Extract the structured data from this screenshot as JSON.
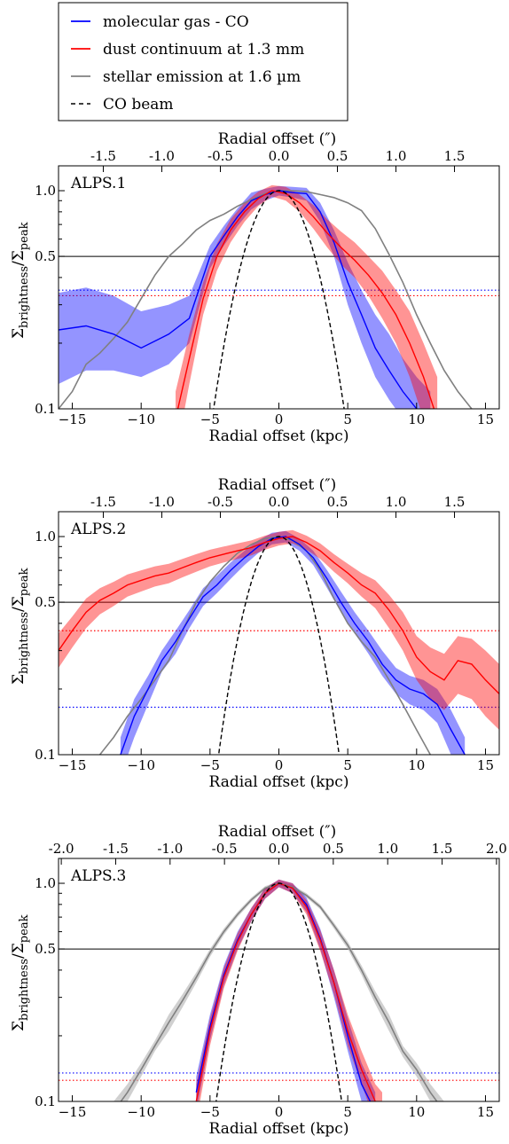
{
  "legend": {
    "items": [
      {
        "label": "molecular gas - CO",
        "color": "#0000ff",
        "style": "solid"
      },
      {
        "label": "dust continuum at 1.3 mm",
        "color": "#ff0000",
        "style": "solid"
      },
      {
        "label": "stellar emission at 1.6 µm",
        "color": "#808080",
        "style": "solid"
      },
      {
        "label": "CO beam",
        "color": "#000000",
        "style": "dashed"
      }
    ]
  },
  "chart_data": [
    {
      "type": "line",
      "panel_label": "ALPS.1",
      "xlabel": "Radial offset (kpc)",
      "x2label": "Radial offset (″)",
      "ylabel_main": "Σ",
      "ylabel_sub1": "brightness",
      "ylabel_sub2": "peak",
      "xlim": [
        -16,
        16
      ],
      "ylim": [
        0.1,
        1.3
      ],
      "yscale": "log",
      "xticks": [
        -15,
        -10,
        -5,
        0,
        5,
        10,
        15
      ],
      "xticklabels": [
        "−15",
        "−10",
        "−5",
        "0",
        "5",
        "10",
        "15"
      ],
      "x2ticks": [
        -1.5,
        -1.0,
        -0.5,
        0.0,
        0.5,
        1.0,
        1.5
      ],
      "x2ticklabels": [
        "-1.5",
        "-1.0",
        "-0.5",
        "0.0",
        "0.5",
        "1.0",
        "1.5"
      ],
      "kpc_per_arcsec": 8.5,
      "yticks": [
        0.1,
        0.5,
        1.0
      ],
      "yticklabels": [
        "0.1",
        "0.5",
        "1.0"
      ],
      "hline_black": 0.5,
      "hline_blue": 0.35,
      "hline_red": 0.33,
      "series": [
        {
          "name": "molecular gas - CO",
          "color": "#0000ff",
          "band": true,
          "x": [
            -16,
            -14,
            -12,
            -10,
            -8,
            -6.5,
            -5,
            -4,
            -3,
            -2,
            -1,
            0,
            1,
            2,
            3,
            4,
            5,
            6,
            7,
            8,
            9,
            10,
            11
          ],
          "y": [
            0.23,
            0.24,
            0.22,
            0.19,
            0.22,
            0.26,
            0.5,
            0.62,
            0.76,
            0.9,
            0.96,
            1.0,
            0.98,
            0.97,
            0.8,
            0.58,
            0.38,
            0.27,
            0.19,
            0.15,
            0.12,
            0.1,
            0.09
          ],
          "lo": [
            0.13,
            0.15,
            0.15,
            0.14,
            0.16,
            0.2,
            0.44,
            0.56,
            0.69,
            0.82,
            0.9,
            0.95,
            0.93,
            0.9,
            0.72,
            0.5,
            0.3,
            0.2,
            0.14,
            0.11,
            0.09,
            0.08,
            0.07
          ],
          "hi": [
            0.34,
            0.36,
            0.33,
            0.28,
            0.3,
            0.33,
            0.56,
            0.69,
            0.83,
            0.98,
            1.02,
            1.05,
            1.04,
            1.03,
            0.88,
            0.66,
            0.47,
            0.35,
            0.27,
            0.22,
            0.17,
            0.14,
            0.12
          ]
        },
        {
          "name": "dust continuum at 1.3 mm",
          "color": "#ff0000",
          "band": true,
          "x": [
            -7.5,
            -6.5,
            -5.5,
            -4.5,
            -3.5,
            -2.5,
            -1.5,
            -0.5,
            0.5,
            1.5,
            2.5,
            3.5,
            4.5,
            5.5,
            6.5,
            7.5,
            8.5,
            9.5,
            10.5,
            11.5
          ],
          "y": [
            0.09,
            0.17,
            0.32,
            0.5,
            0.66,
            0.8,
            0.92,
            1.0,
            0.97,
            0.88,
            0.76,
            0.64,
            0.55,
            0.48,
            0.41,
            0.34,
            0.27,
            0.2,
            0.14,
            0.09
          ],
          "lo": [
            0.06,
            0.13,
            0.27,
            0.43,
            0.58,
            0.72,
            0.85,
            0.94,
            0.9,
            0.8,
            0.67,
            0.55,
            0.46,
            0.4,
            0.33,
            0.26,
            0.2,
            0.14,
            0.09,
            0.06
          ],
          "hi": [
            0.12,
            0.22,
            0.38,
            0.57,
            0.74,
            0.88,
            0.99,
            1.06,
            1.04,
            0.96,
            0.86,
            0.74,
            0.65,
            0.58,
            0.5,
            0.43,
            0.35,
            0.28,
            0.2,
            0.14
          ]
        },
        {
          "name": "stellar emission at 1.6 µm",
          "color": "#808080",
          "band": false,
          "x": [
            -16,
            -15,
            -14,
            -13,
            -12,
            -11,
            -10,
            -9,
            -8,
            -7,
            -6,
            -5,
            -4,
            -3,
            -2,
            -1,
            0,
            1,
            2,
            3,
            4,
            5,
            6,
            7,
            8,
            9,
            10,
            11,
            12,
            13,
            14
          ],
          "y": [
            0.1,
            0.12,
            0.16,
            0.18,
            0.21,
            0.25,
            0.32,
            0.41,
            0.5,
            0.57,
            0.66,
            0.73,
            0.78,
            0.85,
            0.91,
            0.97,
            1.0,
            1.0,
            0.99,
            0.96,
            0.93,
            0.88,
            0.81,
            0.67,
            0.51,
            0.38,
            0.27,
            0.2,
            0.15,
            0.12,
            0.1
          ]
        },
        {
          "name": "CO beam",
          "color": "#000000",
          "band": false,
          "dashed": true,
          "gauss_fwhm": 5.2
        }
      ]
    },
    {
      "type": "line",
      "panel_label": "ALPS.2",
      "xlabel": "Radial offset (kpc)",
      "x2label": "Radial offset (″)",
      "ylabel_main": "Σ",
      "ylabel_sub1": "brightness",
      "ylabel_sub2": "peak",
      "xlim": [
        -16,
        16
      ],
      "ylim": [
        0.1,
        1.3
      ],
      "yscale": "log",
      "xticks": [
        -15,
        -10,
        -5,
        0,
        5,
        10,
        15
      ],
      "xticklabels": [
        "−15",
        "−10",
        "−5",
        "0",
        "5",
        "10",
        "15"
      ],
      "x2ticks": [
        -1.5,
        -1.0,
        -0.5,
        0.0,
        0.5,
        1.0,
        1.5
      ],
      "x2ticklabels": [
        "-1.5",
        "-1.0",
        "-0.5",
        "0.0",
        "0.5",
        "1.0",
        "1.5"
      ],
      "kpc_per_arcsec": 8.5,
      "yticks": [
        0.1,
        0.5,
        1.0
      ],
      "yticklabels": [
        "0.1",
        "0.5",
        "1.0"
      ],
      "hline_black": 0.5,
      "hline_blue": 0.165,
      "hline_red": 0.37,
      "series": [
        {
          "name": "molecular gas - CO",
          "color": "#0000ff",
          "band": true,
          "x": [
            -11.5,
            -10.5,
            -9.5,
            -8.5,
            -7.5,
            -6.5,
            -5.5,
            -4.5,
            -3.5,
            -2.5,
            -1.5,
            -0.5,
            0.5,
            1.5,
            2.5,
            3.5,
            4.5,
            5.5,
            6.5,
            7.5,
            8.5,
            9.5,
            10.5,
            11.5,
            12.5,
            13.5
          ],
          "y": [
            0.1,
            0.15,
            0.2,
            0.27,
            0.33,
            0.42,
            0.53,
            0.6,
            0.7,
            0.8,
            0.9,
            0.98,
            1.0,
            0.92,
            0.8,
            0.64,
            0.5,
            0.4,
            0.33,
            0.26,
            0.22,
            0.2,
            0.19,
            0.17,
            0.13,
            0.1
          ],
          "lo": [
            0.08,
            0.12,
            0.17,
            0.24,
            0.29,
            0.38,
            0.48,
            0.55,
            0.64,
            0.74,
            0.84,
            0.92,
            0.94,
            0.86,
            0.74,
            0.58,
            0.45,
            0.36,
            0.29,
            0.23,
            0.19,
            0.17,
            0.16,
            0.14,
            0.1,
            0.08
          ],
          "hi": [
            0.12,
            0.18,
            0.23,
            0.3,
            0.37,
            0.46,
            0.58,
            0.66,
            0.76,
            0.86,
            0.96,
            1.04,
            1.06,
            0.98,
            0.86,
            0.7,
            0.56,
            0.45,
            0.37,
            0.3,
            0.25,
            0.23,
            0.22,
            0.2,
            0.16,
            0.12
          ]
        },
        {
          "name": "dust continuum at 1.3 mm",
          "color": "#ff0000",
          "band": true,
          "x": [
            -16,
            -15,
            -14,
            -13,
            -12,
            -11,
            -10,
            -9,
            -8,
            -7,
            -6,
            -5,
            -4,
            -3,
            -2,
            -1,
            0,
            1,
            2,
            3,
            4,
            5,
            6,
            7,
            8,
            9,
            10,
            11,
            12,
            13,
            14,
            15,
            16
          ],
          "y": [
            0.3,
            0.37,
            0.45,
            0.51,
            0.55,
            0.6,
            0.63,
            0.66,
            0.68,
            0.72,
            0.76,
            0.8,
            0.83,
            0.86,
            0.89,
            0.94,
            0.98,
            1.0,
            0.94,
            0.86,
            0.76,
            0.68,
            0.6,
            0.55,
            0.46,
            0.37,
            0.28,
            0.24,
            0.22,
            0.27,
            0.26,
            0.22,
            0.19
          ],
          "lo": [
            0.25,
            0.31,
            0.38,
            0.44,
            0.48,
            0.53,
            0.56,
            0.59,
            0.61,
            0.65,
            0.69,
            0.73,
            0.76,
            0.79,
            0.82,
            0.87,
            0.91,
            0.93,
            0.87,
            0.79,
            0.69,
            0.61,
            0.53,
            0.47,
            0.38,
            0.3,
            0.22,
            0.18,
            0.16,
            0.19,
            0.18,
            0.15,
            0.13
          ],
          "hi": [
            0.36,
            0.43,
            0.52,
            0.58,
            0.62,
            0.67,
            0.7,
            0.73,
            0.75,
            0.79,
            0.83,
            0.87,
            0.9,
            0.93,
            0.96,
            1.01,
            1.05,
            1.07,
            1.01,
            0.93,
            0.83,
            0.75,
            0.68,
            0.63,
            0.54,
            0.45,
            0.35,
            0.31,
            0.29,
            0.35,
            0.34,
            0.3,
            0.26
          ]
        },
        {
          "name": "stellar emission at 1.6 µm",
          "color": "#808080",
          "band": false,
          "x": [
            -13,
            -12,
            -11,
            -10,
            -9,
            -8,
            -7,
            -6,
            -5,
            -4,
            -3,
            -2,
            -1,
            0,
            1,
            2,
            3,
            4,
            5,
            6,
            7,
            8,
            9,
            10,
            11
          ],
          "y": [
            0.1,
            0.12,
            0.15,
            0.18,
            0.22,
            0.27,
            0.37,
            0.5,
            0.62,
            0.73,
            0.84,
            0.92,
            0.98,
            1.0,
            0.96,
            0.86,
            0.7,
            0.52,
            0.4,
            0.33,
            0.28,
            0.22,
            0.17,
            0.13,
            0.1
          ]
        },
        {
          "name": "CO beam",
          "color": "#000000",
          "band": false,
          "dashed": true,
          "gauss_fwhm": 4.8
        }
      ]
    },
    {
      "type": "line",
      "panel_label": "ALPS.3",
      "xlabel": "Radial offset (kpc)",
      "x2label": "Radial offset (″)",
      "ylabel_main": "Σ",
      "ylabel_sub1": "brightness",
      "ylabel_sub2": "peak",
      "xlim": [
        -16,
        16
      ],
      "ylim": [
        0.1,
        1.3
      ],
      "yscale": "log",
      "xticks": [
        -15,
        -10,
        -5,
        0,
        5,
        10,
        15
      ],
      "xticklabels": [
        "−15",
        "−10",
        "−5",
        "0",
        "5",
        "10",
        "15"
      ],
      "x2ticks": [
        -2.0,
        -1.5,
        -1.0,
        -0.5,
        0.0,
        0.5,
        1.0,
        1.5,
        2.0
      ],
      "x2ticklabels": [
        "-2.0",
        "-1.5",
        "-1.0",
        "-0.5",
        "0.0",
        "0.5",
        "1.0",
        "1.5",
        "2.0"
      ],
      "kpc_per_arcsec": 7.9,
      "yticks": [
        0.1,
        0.5,
        1.0
      ],
      "yticklabels": [
        "0.1",
        "0.5",
        "1.0"
      ],
      "hline_black": 0.5,
      "hline_blue": 0.135,
      "hline_red": 0.125,
      "series": [
        {
          "name": "molecular gas - CO",
          "color": "#0000ff",
          "band": true,
          "x": [
            -6,
            -5,
            -4,
            -3,
            -2,
            -1,
            0,
            1,
            2,
            3,
            4,
            5,
            6,
            7
          ],
          "y": [
            0.11,
            0.22,
            0.38,
            0.55,
            0.72,
            0.9,
            1.0,
            0.95,
            0.8,
            0.56,
            0.35,
            0.2,
            0.12,
            0.09
          ],
          "lo": [
            0.09,
            0.19,
            0.34,
            0.5,
            0.67,
            0.85,
            0.96,
            0.9,
            0.74,
            0.5,
            0.3,
            0.17,
            0.1,
            0.07
          ],
          "hi": [
            0.13,
            0.25,
            0.42,
            0.6,
            0.77,
            0.95,
            1.04,
            1.0,
            0.86,
            0.62,
            0.4,
            0.24,
            0.15,
            0.11
          ]
        },
        {
          "name": "dust continuum at 1.3 mm",
          "color": "#ff0000",
          "band": true,
          "x": [
            -6,
            -5,
            -4,
            -3,
            -2,
            -1,
            0,
            1,
            2,
            3,
            4,
            5,
            6,
            7,
            7.5
          ],
          "y": [
            0.1,
            0.21,
            0.37,
            0.54,
            0.72,
            0.9,
            1.0,
            0.95,
            0.78,
            0.55,
            0.35,
            0.21,
            0.14,
            0.1,
            0.09
          ],
          "lo": [
            0.08,
            0.18,
            0.33,
            0.49,
            0.67,
            0.85,
            0.96,
            0.9,
            0.72,
            0.49,
            0.31,
            0.18,
            0.12,
            0.08,
            0.07
          ],
          "hi": [
            0.12,
            0.24,
            0.41,
            0.59,
            0.77,
            0.95,
            1.04,
            1.0,
            0.84,
            0.61,
            0.4,
            0.25,
            0.17,
            0.12,
            0.11
          ]
        },
        {
          "name": "stellar emission at 1.6 µm",
          "color": "#808080",
          "band": true,
          "band_color": "#b0b0b0",
          "x": [
            -12,
            -11,
            -10,
            -9,
            -8,
            -7,
            -6,
            -5,
            -4,
            -3,
            -2,
            -1,
            0,
            1,
            2,
            3,
            4,
            5,
            6,
            7,
            8,
            9,
            10,
            11,
            12
          ],
          "y": [
            0.09,
            0.11,
            0.14,
            0.18,
            0.23,
            0.29,
            0.37,
            0.48,
            0.6,
            0.72,
            0.84,
            0.95,
            1.0,
            0.96,
            0.88,
            0.78,
            0.64,
            0.52,
            0.4,
            0.3,
            0.23,
            0.17,
            0.14,
            0.11,
            0.09
          ],
          "lo": [
            0.08,
            0.1,
            0.13,
            0.17,
            0.21,
            0.27,
            0.35,
            0.46,
            0.58,
            0.7,
            0.82,
            0.93,
            0.98,
            0.94,
            0.86,
            0.76,
            0.62,
            0.5,
            0.38,
            0.28,
            0.21,
            0.16,
            0.13,
            0.1,
            0.08
          ],
          "hi": [
            0.1,
            0.12,
            0.15,
            0.19,
            0.25,
            0.31,
            0.39,
            0.5,
            0.62,
            0.74,
            0.86,
            0.97,
            1.02,
            0.98,
            0.9,
            0.8,
            0.66,
            0.54,
            0.42,
            0.32,
            0.25,
            0.18,
            0.15,
            0.12,
            0.1
          ]
        },
        {
          "name": "CO beam",
          "color": "#000000",
          "band": false,
          "dashed": true,
          "gauss_fwhm": 5.0
        }
      ]
    }
  ]
}
